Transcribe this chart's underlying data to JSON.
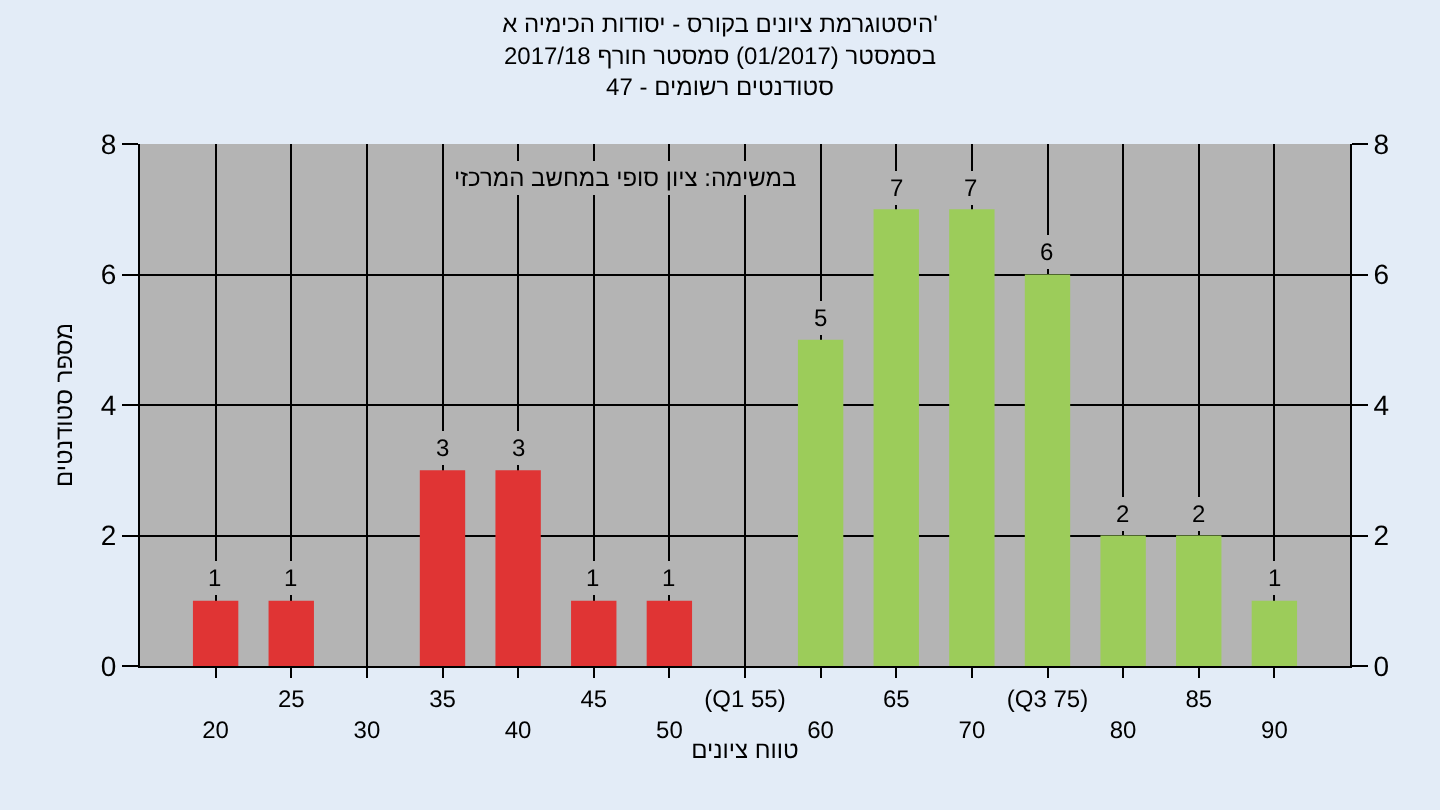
{
  "chart_data": {
    "type": "bar",
    "title": "היסטוגרמת ציונים בקורס - יסודות הכימיה א'\nבסמסטר (01/2017) סמסטר חורף 2017/18\nסטודנטים רשומים - 47",
    "xlabel": "טווח ציונים",
    "ylabel": "מספר סטודנטים",
    "annotations": [
      "במשימה: ציון סופי במחשב המרכזי"
    ],
    "categories": [
      "20",
      "25",
      "30",
      "35",
      "40",
      "45",
      "50",
      "(Q1 55)",
      "60",
      "65",
      "70",
      "(Q3 75)",
      "80",
      "85",
      "90"
    ],
    "values": [
      1,
      1,
      0,
      3,
      3,
      1,
      1,
      0,
      5,
      7,
      7,
      6,
      2,
      2,
      1
    ],
    "value_labels": [
      "1",
      "1",
      null,
      "3",
      "3",
      "1",
      "1",
      null,
      "5",
      "7",
      "7",
      "6",
      "2",
      "2",
      "1"
    ],
    "colors": [
      "#e03434",
      "#e03434",
      "#e03434",
      "#e03434",
      "#e03434",
      "#e03434",
      "#e03434",
      "#9ccc5a",
      "#9ccc5a",
      "#9ccc5a",
      "#9ccc5a",
      "#9ccc5a",
      "#9ccc5a",
      "#9ccc5a",
      "#9ccc5a"
    ],
    "ylim": [
      0,
      8
    ],
    "yticks": [
      0,
      2,
      4,
      6,
      8
    ],
    "y2lim": [
      0,
      8
    ],
    "y2ticks": [
      0,
      2,
      4,
      6,
      8
    ],
    "grid": true,
    "legend": false
  }
}
